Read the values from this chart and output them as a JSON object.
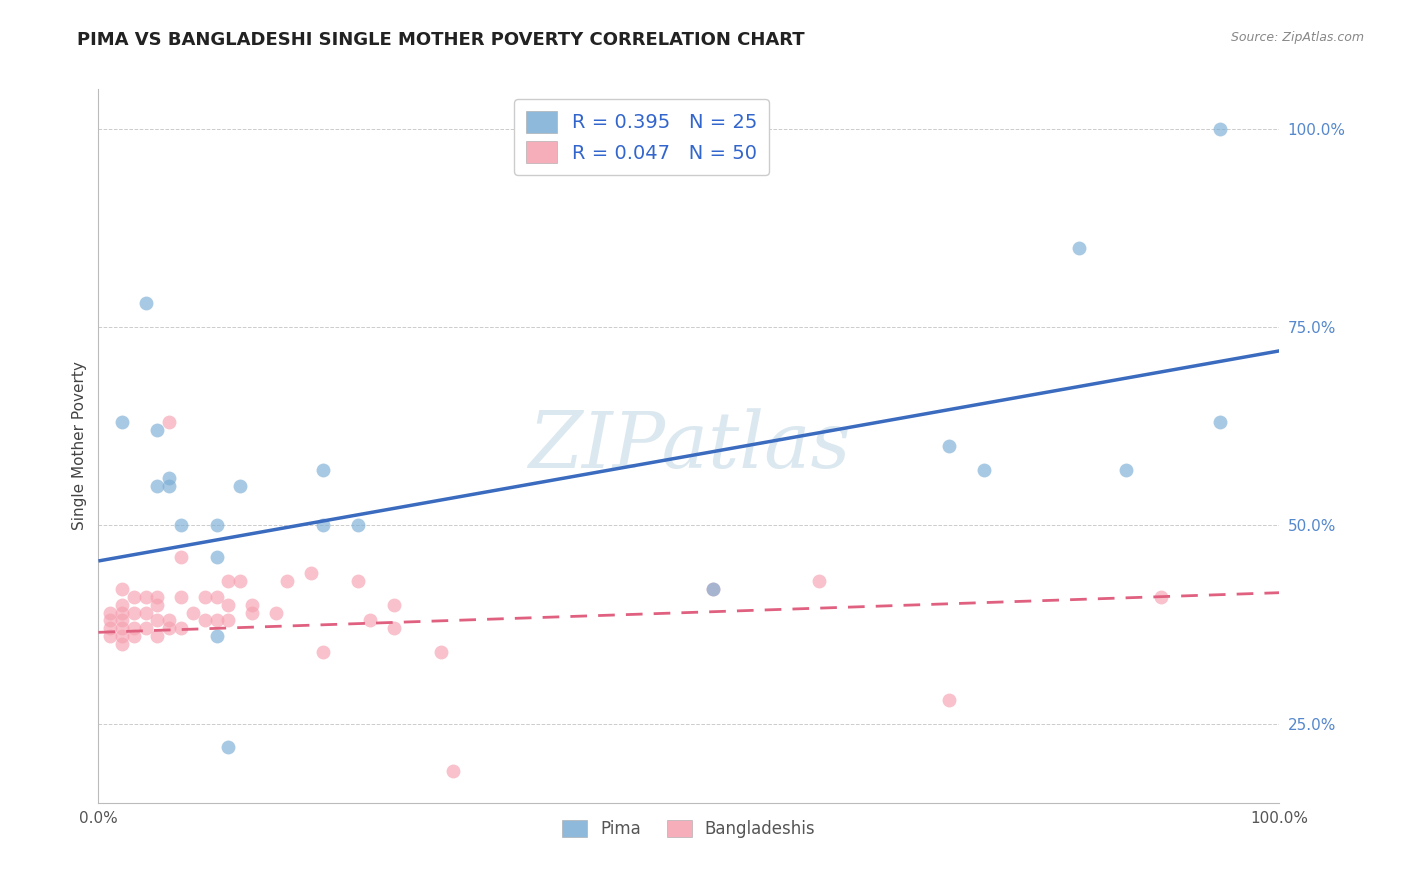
{
  "title": "PIMA VS BANGLADESHI SINGLE MOTHER POVERTY CORRELATION CHART",
  "source": "Source: ZipAtlas.com",
  "ylabel": "Single Mother Poverty",
  "xlim": [
    0.0,
    1.0
  ],
  "ylim": [
    0.15,
    1.05
  ],
  "yticks": [
    0.25,
    0.5,
    0.75,
    1.0
  ],
  "ytick_labels": [
    "25.0%",
    "50.0%",
    "75.0%",
    "100.0%"
  ],
  "xtick_labels": [
    "0.0%",
    "100.0%"
  ],
  "pima_color": "#7aadd4",
  "bangladeshi_color": "#f5a0b0",
  "pima_line_color": "#3a6bbf",
  "bangladeshi_line_color": "#e06080",
  "watermark": "ZIPatlas",
  "watermark_color": "#dce8f0",
  "pima_x": [
    0.02,
    0.04,
    0.05,
    0.05,
    0.06,
    0.06,
    0.07,
    0.1,
    0.1,
    0.1,
    0.11,
    0.12,
    0.19,
    0.19,
    0.22,
    0.52,
    0.72,
    0.75,
    0.83,
    0.87,
    0.95,
    0.95
  ],
  "pima_y": [
    0.63,
    0.78,
    0.55,
    0.62,
    0.55,
    0.56,
    0.5,
    0.46,
    0.5,
    0.36,
    0.22,
    0.55,
    0.5,
    0.57,
    0.5,
    0.42,
    0.6,
    0.57,
    0.85,
    0.57,
    0.63,
    1.0
  ],
  "bangladeshi_x": [
    0.01,
    0.01,
    0.01,
    0.01,
    0.02,
    0.02,
    0.02,
    0.02,
    0.02,
    0.02,
    0.02,
    0.03,
    0.03,
    0.03,
    0.03,
    0.04,
    0.04,
    0.04,
    0.05,
    0.05,
    0.05,
    0.05,
    0.06,
    0.06,
    0.06,
    0.07,
    0.07,
    0.07,
    0.08,
    0.09,
    0.09,
    0.1,
    0.1,
    0.11,
    0.11,
    0.11,
    0.12,
    0.13,
    0.13,
    0.15,
    0.16,
    0.18,
    0.19,
    0.22,
    0.23,
    0.25,
    0.25,
    0.29,
    0.3,
    0.52,
    0.61,
    0.72,
    0.9
  ],
  "bangladeshi_y": [
    0.36,
    0.37,
    0.38,
    0.39,
    0.35,
    0.36,
    0.37,
    0.38,
    0.39,
    0.4,
    0.42,
    0.36,
    0.37,
    0.39,
    0.41,
    0.37,
    0.39,
    0.41,
    0.36,
    0.38,
    0.4,
    0.41,
    0.37,
    0.38,
    0.63,
    0.37,
    0.41,
    0.46,
    0.39,
    0.38,
    0.41,
    0.38,
    0.41,
    0.38,
    0.4,
    0.43,
    0.43,
    0.39,
    0.4,
    0.39,
    0.43,
    0.44,
    0.34,
    0.43,
    0.38,
    0.37,
    0.4,
    0.34,
    0.19,
    0.42,
    0.43,
    0.28,
    0.41
  ],
  "pima_trend_x": [
    0.0,
    1.0
  ],
  "pima_trend_y_start": 0.455,
  "pima_trend_y_end": 0.72,
  "bangladeshi_trend_y_start": 0.365,
  "bangladeshi_trend_y_end": 0.415,
  "background_color": "#ffffff",
  "grid_color": "#cccccc",
  "title_fontsize": 13,
  "axis_label_fontsize": 11,
  "tick_fontsize": 11,
  "marker_size": 100
}
